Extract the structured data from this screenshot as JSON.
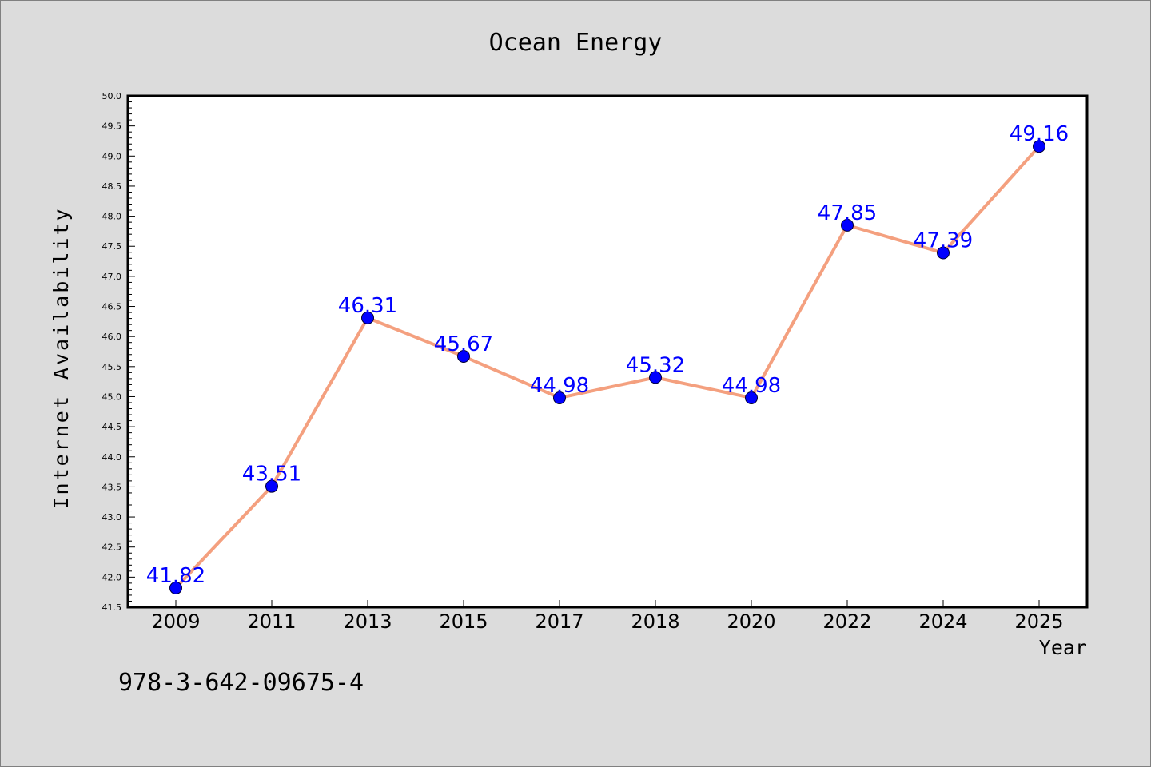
{
  "chart_data": {
    "type": "line",
    "title": "Ocean Energy",
    "xlabel": "Year",
    "ylabel": "Internet Availability",
    "categories": [
      "2009",
      "2011",
      "2013",
      "2015",
      "2017",
      "2018",
      "2020",
      "2022",
      "2024",
      "2025"
    ],
    "values": [
      41.82,
      43.51,
      46.31,
      45.67,
      44.98,
      45.32,
      44.98,
      47.85,
      47.39,
      49.16
    ],
    "data_labels": [
      "41.82",
      "43.51",
      "46.31",
      "45.67",
      "44.98",
      "45.32",
      "44.98",
      "47.85",
      "47.39",
      "49.16"
    ],
    "ylim": [
      41.5,
      50.0
    ],
    "yticks": [
      "41.5",
      "42.0",
      "42.5",
      "43.0",
      "43.5",
      "44.0",
      "44.5",
      "45.0",
      "45.5",
      "46.0",
      "46.5",
      "47.0",
      "47.5",
      "48.0",
      "48.5",
      "49.0",
      "49.5",
      "50.0"
    ],
    "grid": false,
    "legend": "none",
    "colors": {
      "line": "#f4a07f",
      "marker": "#0000ff",
      "data_label": "#0000ff",
      "plot_background": "#ffffff",
      "figure_background": "#dcdcdc"
    }
  },
  "footnote": "978-3-642-09675-4"
}
